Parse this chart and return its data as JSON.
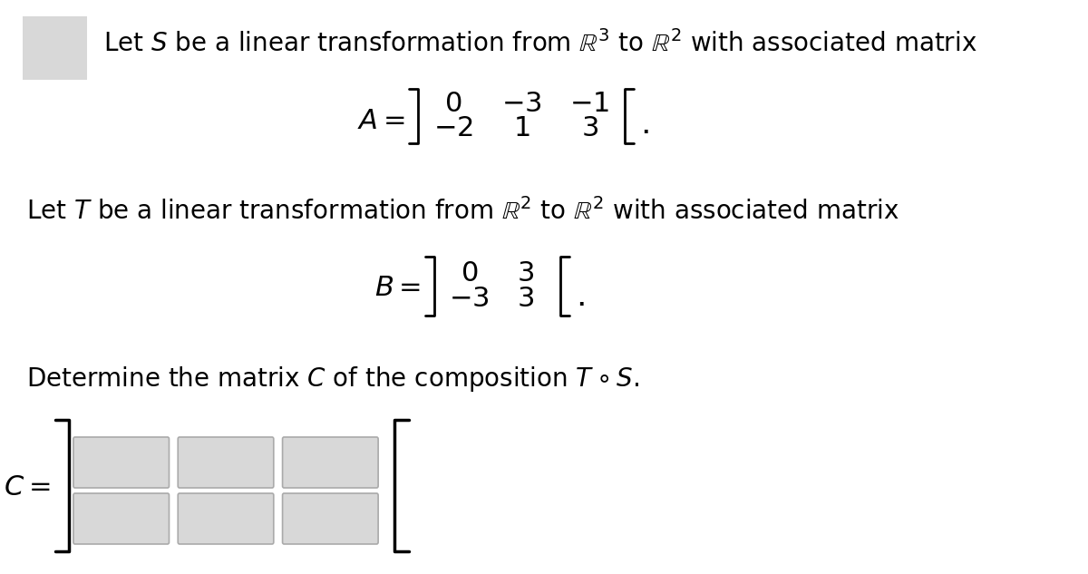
{
  "bg_color": "#f0f0f0",
  "white": "#ffffff",
  "light_gray": "#d8d8d8",
  "text_color": "#000000",
  "line1": "Let $S$ be a linear transformation from $\\mathbb{R}^3$ to $\\mathbb{R}^2$ with associated matrix",
  "line2": "Let $T$ be a linear transformation from $\\mathbb{R}^2$ to $\\mathbb{R}^2$ with associated matrix",
  "line3": "Determine the matrix $C$ of the composition $T \\circ S$.",
  "matrix_A_label": "$A =$",
  "matrix_B_label": "$B =$",
  "matrix_C_label": "$C =$",
  "A_row1": [
    "$0$",
    "$-3$",
    "$-1$"
  ],
  "A_row2": [
    "$-2$",
    "$1$",
    "$3$"
  ],
  "B_row1": [
    "$0$",
    "$3$"
  ],
  "B_row2": [
    "$-3$",
    "$3$"
  ],
  "font_size_text": 20,
  "font_size_matrix": 22,
  "font_size_label": 22
}
